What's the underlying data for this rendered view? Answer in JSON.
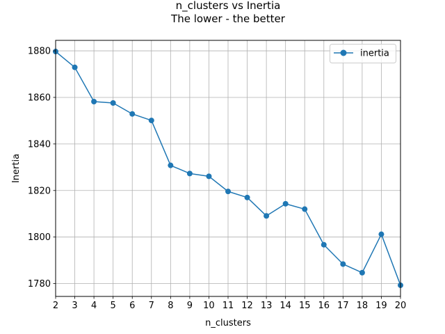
{
  "chart_data": {
    "type": "line",
    "title": "n_clusters vs Inertia",
    "subtitle": "The lower - the better",
    "xlabel": "n_clusters",
    "ylabel": "Inertia",
    "x": [
      2,
      3,
      4,
      5,
      6,
      7,
      8,
      9,
      10,
      11,
      12,
      13,
      14,
      15,
      16,
      17,
      18,
      19,
      20
    ],
    "series": [
      {
        "name": "inertia",
        "color": "#1f77b4",
        "marker": "circle",
        "values": [
          1879.7,
          1872.9,
          1858.2,
          1857.6,
          1852.9,
          1850.1,
          1830.8,
          1827.3,
          1826.1,
          1819.6,
          1817.0,
          1809.1,
          1814.3,
          1812.0,
          1796.7,
          1788.4,
          1784.7,
          1801.2,
          1779.3
        ]
      }
    ],
    "xlim": [
      2,
      20
    ],
    "ylim": [
      1774.5,
      1884.5
    ],
    "xticks": [
      2,
      3,
      4,
      5,
      6,
      7,
      8,
      9,
      10,
      11,
      12,
      13,
      14,
      15,
      16,
      17,
      18,
      19,
      20
    ],
    "yticks": [
      1780,
      1800,
      1820,
      1840,
      1860,
      1880
    ],
    "grid": true,
    "legend_position": "top-right"
  }
}
